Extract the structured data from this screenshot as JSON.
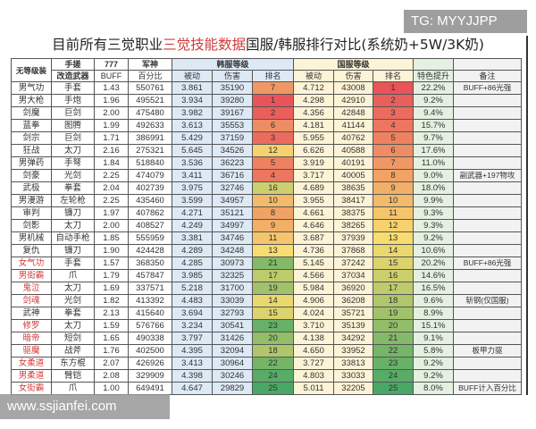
{
  "watermark_top": "TG: MYYJJPP",
  "watermark_bottom": "www.ssjianfei.com",
  "title": {
    "part1": "目前所有三觉职业",
    "highlight": "三觉技能数据",
    "part2": "国服/韩服排行对比(系统奶+5W/3K奶)"
  },
  "colors": {
    "highlight": "#d23a3a",
    "rank_best": "#e8545a",
    "rank_mid": "#f7dc6f",
    "rank_worst": "#4aa866"
  },
  "header": {
    "row1": {
      "name": "无等级装",
      "hand": "手搓",
      "buff": "777",
      "junshen": "军神",
      "kr": "韩服等级",
      "cn": "国服等级"
    },
    "row2": {
      "weapon": "改造武器",
      "buff": "BUFF",
      "pct": "百分比",
      "kr_passive": "被动",
      "kr_dmg": "伤害",
      "kr_rank": "排名",
      "cn_passive": "被动",
      "cn_dmg": "伤害",
      "cn_rank": "排名",
      "boost": "特色提升",
      "note": "备注"
    }
  },
  "rows": [
    {
      "name": "男气功",
      "weapon": "手套",
      "buff": "1.43",
      "pct": "550761",
      "kr_passive": "3.861",
      "kr_dmg": "35190",
      "kr_rank": "7",
      "cn_passive": "4.712",
      "cn_dmg": "43008",
      "cn_rank": "1",
      "boost": "22.2%",
      "note": "BUFF+86光强",
      "red": false
    },
    {
      "name": "男大枪",
      "weapon": "手炮",
      "buff": "1.96",
      "pct": "495521",
      "kr_passive": "3.934",
      "kr_dmg": "39280",
      "kr_rank": "1",
      "cn_passive": "4.298",
      "cn_dmg": "42910",
      "cn_rank": "2",
      "boost": "9.2%",
      "note": "",
      "red": false
    },
    {
      "name": "剑魔",
      "weapon": "巨剑",
      "buff": "2.00",
      "pct": "475480",
      "kr_passive": "3.982",
      "kr_dmg": "39167",
      "kr_rank": "2",
      "cn_passive": "4.356",
      "cn_dmg": "42848",
      "cn_rank": "3",
      "boost": "9.4%",
      "note": "",
      "red": false
    },
    {
      "name": "蓝拳",
      "weapon": "图腾",
      "buff": "1.99",
      "pct": "492633",
      "kr_passive": "3.613",
      "kr_dmg": "35553",
      "kr_rank": "6",
      "cn_passive": "4.181",
      "cn_dmg": "41144",
      "cn_rank": "4",
      "boost": "15.7%",
      "note": "",
      "red": false
    },
    {
      "name": "剑宗",
      "weapon": "巨剑",
      "buff": "1.71",
      "pct": "386991",
      "kr_passive": "5.429",
      "kr_dmg": "37159",
      "kr_rank": "3",
      "cn_passive": "5.955",
      "cn_dmg": "40762",
      "cn_rank": "5",
      "boost": "9.7%",
      "note": "",
      "red": false
    },
    {
      "name": "狂战",
      "weapon": "太刀",
      "buff": "2.16",
      "pct": "275321",
      "kr_passive": "5.645",
      "kr_dmg": "34526",
      "kr_rank": "12",
      "cn_passive": "6.626",
      "cn_dmg": "40588",
      "cn_rank": "6",
      "boost": "17.6%",
      "note": "",
      "red": false
    },
    {
      "name": "男弹药",
      "weapon": "手弩",
      "buff": "1.84",
      "pct": "518840",
      "kr_passive": "3.536",
      "kr_dmg": "36223",
      "kr_rank": "5",
      "cn_passive": "3.919",
      "cn_dmg": "40191",
      "cn_rank": "7",
      "boost": "11.0%",
      "note": "",
      "red": false
    },
    {
      "name": "剑豪",
      "weapon": "光剑",
      "buff": "2.25",
      "pct": "474079",
      "kr_passive": "3.411",
      "kr_dmg": "36716",
      "kr_rank": "4",
      "cn_passive": "3.717",
      "cn_dmg": "40005",
      "cn_rank": "8",
      "boost": "9.0%",
      "note": "副武器+197物攻",
      "red": false
    },
    {
      "name": "武极",
      "weapon": "拳套",
      "buff": "2.04",
      "pct": "402739",
      "kr_passive": "3.975",
      "kr_dmg": "32746",
      "kr_rank": "16",
      "cn_passive": "4.689",
      "cn_dmg": "38635",
      "cn_rank": "9",
      "boost": "18.0%",
      "note": "",
      "red": false
    },
    {
      "name": "男漫游",
      "weapon": "左轮枪",
      "buff": "2.25",
      "pct": "435460",
      "kr_passive": "3.599",
      "kr_dmg": "34957",
      "kr_rank": "10",
      "cn_passive": "3.955",
      "cn_dmg": "38417",
      "cn_rank": "10",
      "boost": "9.9%",
      "note": "",
      "red": false
    },
    {
      "name": "审判",
      "weapon": "镰刀",
      "buff": "1.97",
      "pct": "407862",
      "kr_passive": "4.271",
      "kr_dmg": "35121",
      "kr_rank": "8",
      "cn_passive": "4.661",
      "cn_dmg": "38375",
      "cn_rank": "11",
      "boost": "9.3%",
      "note": "",
      "red": false
    },
    {
      "name": "剑影",
      "weapon": "太刀",
      "buff": "2.00",
      "pct": "408527",
      "kr_passive": "4.249",
      "kr_dmg": "34997",
      "kr_rank": "9",
      "cn_passive": "4.646",
      "cn_dmg": "38265",
      "cn_rank": "12",
      "boost": "9.3%",
      "note": "",
      "red": false
    },
    {
      "name": "男机械",
      "weapon": "自动手枪",
      "buff": "1.85",
      "pct": "555959",
      "kr_passive": "3.381",
      "kr_dmg": "34746",
      "kr_rank": "11",
      "cn_passive": "3.687",
      "cn_dmg": "37939",
      "cn_rank": "13",
      "boost": "9.2%",
      "note": "",
      "red": false
    },
    {
      "name": "复仇",
      "weapon": "镰刀",
      "buff": "1.90",
      "pct": "424428",
      "kr_passive": "4.289",
      "kr_dmg": "34248",
      "kr_rank": "13",
      "cn_passive": "4.736",
      "cn_dmg": "37868",
      "cn_rank": "14",
      "boost": "10.6%",
      "note": "",
      "red": false
    },
    {
      "name": "女气功",
      "weapon": "手套",
      "buff": "1.57",
      "pct": "368350",
      "kr_passive": "4.285",
      "kr_dmg": "30973",
      "kr_rank": "21",
      "cn_passive": "5.145",
      "cn_dmg": "37242",
      "cn_rank": "15",
      "boost": "20.2%",
      "note": "BUFF+86光强",
      "red": true
    },
    {
      "name": "男街霸",
      "weapon": "爪",
      "buff": "1.79",
      "pct": "457847",
      "kr_passive": "3.985",
      "kr_dmg": "32325",
      "kr_rank": "17",
      "cn_passive": "4.566",
      "cn_dmg": "37034",
      "cn_rank": "16",
      "boost": "14.6%",
      "note": "",
      "red": true
    },
    {
      "name": "鬼泣",
      "weapon": "太刀",
      "buff": "1.69",
      "pct": "337571",
      "kr_passive": "5.218",
      "kr_dmg": "31700",
      "kr_rank": "19",
      "cn_passive": "5.984",
      "cn_dmg": "36920",
      "cn_rank": "17",
      "boost": "16.5%",
      "note": "",
      "red": true
    },
    {
      "name": "剑魂",
      "weapon": "光剑",
      "buff": "1.82",
      "pct": "413392",
      "kr_passive": "4.483",
      "kr_dmg": "33039",
      "kr_rank": "14",
      "cn_passive": "4.906",
      "cn_dmg": "36208",
      "cn_rank": "18",
      "boost": "9.6%",
      "note": "斩钢(仅国服)",
      "red": true
    },
    {
      "name": "武神",
      "weapon": "拳套",
      "buff": "2.13",
      "pct": "415640",
      "kr_passive": "3.694",
      "kr_dmg": "32793",
      "kr_rank": "15",
      "cn_passive": "4.024",
      "cn_dmg": "35721",
      "cn_rank": "19",
      "boost": "8.9%",
      "note": "",
      "red": false
    },
    {
      "name": "修罗",
      "weapon": "太刀",
      "buff": "1.59",
      "pct": "576766",
      "kr_passive": "3.234",
      "kr_dmg": "30541",
      "kr_rank": "23",
      "cn_passive": "3.710",
      "cn_dmg": "35139",
      "cn_rank": "20",
      "boost": "15.1%",
      "note": "",
      "red": true
    },
    {
      "name": "暗帝",
      "weapon": "短剑",
      "buff": "1.65",
      "pct": "490338",
      "kr_passive": "3.797",
      "kr_dmg": "31426",
      "kr_rank": "20",
      "cn_passive": "4.138",
      "cn_dmg": "34292",
      "cn_rank": "21",
      "boost": "9.1%",
      "note": "",
      "red": true
    },
    {
      "name": "驱魔",
      "weapon": "战斧",
      "buff": "1.76",
      "pct": "402500",
      "kr_passive": "4.395",
      "kr_dmg": "32094",
      "kr_rank": "18",
      "cn_passive": "4.650",
      "cn_dmg": "33952",
      "cn_rank": "22",
      "boost": "5.8%",
      "note": "板甲力驱",
      "red": true
    },
    {
      "name": "女柔道",
      "weapon": "东方棍",
      "buff": "2.07",
      "pct": "426926",
      "kr_passive": "3.413",
      "kr_dmg": "30964",
      "kr_rank": "22",
      "cn_passive": "3.727",
      "cn_dmg": "33813",
      "cn_rank": "23",
      "boost": "9.2%",
      "note": "",
      "red": true
    },
    {
      "name": "男柔道",
      "weapon": "臂铠",
      "buff": "2.08",
      "pct": "329909",
      "kr_passive": "4.398",
      "kr_dmg": "30246",
      "kr_rank": "24",
      "cn_passive": "4.803",
      "cn_dmg": "33033",
      "cn_rank": "24",
      "boost": "9.2%",
      "note": "",
      "red": true
    },
    {
      "name": "女街霸",
      "weapon": "爪",
      "buff": "1.00",
      "pct": "649491",
      "kr_passive": "4.647",
      "kr_dmg": "29829",
      "kr_rank": "25",
      "cn_passive": "5.011",
      "cn_dmg": "32205",
      "cn_rank": "25",
      "boost": "8.0%",
      "note": "BUFF计入百分比",
      "red": true
    }
  ]
}
